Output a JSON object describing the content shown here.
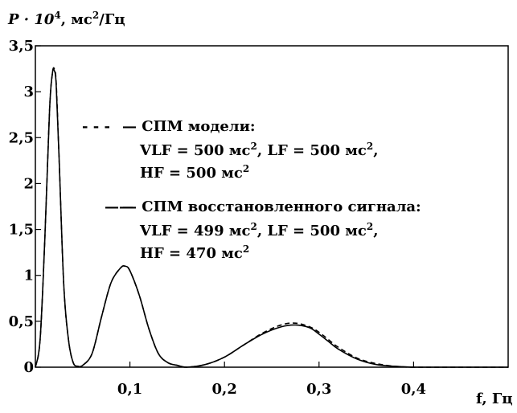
{
  "chart_data": {
    "type": "line",
    "title": "",
    "ylabel": "P · 10⁴, мс²/Гц",
    "ylabel_parts": {
      "base": "P · 10",
      "exp1": "4",
      "mid": ", мс",
      "exp2": "2",
      "tail": "/Гц"
    },
    "xlabel": "f, Гц",
    "xlim": [
      0,
      0.5
    ],
    "ylim": [
      0,
      3.5
    ],
    "grid": false,
    "x_ticks": [
      {
        "value": 0.1,
        "label": "0,1"
      },
      {
        "value": 0.2,
        "label": "0,2"
      },
      {
        "value": 0.3,
        "label": "0,3"
      },
      {
        "value": 0.4,
        "label": "0,4"
      }
    ],
    "y_ticks": [
      {
        "value": 0,
        "label": "0"
      },
      {
        "value": 0.5,
        "label": "0,5"
      },
      {
        "value": 1,
        "label": "1"
      },
      {
        "value": 1.5,
        "label": "1,5"
      },
      {
        "value": 2,
        "label": "2"
      },
      {
        "value": 2.5,
        "label": "2,5"
      },
      {
        "value": 3,
        "label": "3"
      },
      {
        "value": 3.5,
        "label": "3,5"
      }
    ],
    "series": [
      {
        "name": "СПМ модели",
        "style": "dashed",
        "color": "#000000",
        "x": [
          0,
          0.005,
          0.01,
          0.015,
          0.018,
          0.02,
          0.022,
          0.025,
          0.03,
          0.035,
          0.04,
          0.045,
          0.05,
          0.06,
          0.07,
          0.08,
          0.09,
          0.095,
          0.1,
          0.11,
          0.12,
          0.13,
          0.14,
          0.15,
          0.16,
          0.18,
          0.2,
          0.22,
          0.24,
          0.26,
          0.275,
          0.29,
          0.3,
          0.31,
          0.32,
          0.34,
          0.36,
          0.38,
          0.4,
          0.42,
          0.45,
          0.5
        ],
        "y": [
          0,
          0.3,
          1.4,
          2.8,
          3.2,
          3.25,
          3.1,
          2.3,
          0.9,
          0.3,
          0.05,
          0.01,
          0.02,
          0.15,
          0.55,
          0.92,
          1.08,
          1.1,
          1.05,
          0.78,
          0.42,
          0.15,
          0.05,
          0.02,
          0.0,
          0.03,
          0.11,
          0.24,
          0.37,
          0.46,
          0.48,
          0.44,
          0.38,
          0.3,
          0.22,
          0.1,
          0.04,
          0.01,
          0.0,
          0.0,
          0.0,
          0.0
        ]
      },
      {
        "name": "СПМ восстановленного сигнала",
        "style": "solid",
        "color": "#000000",
        "x": [
          0,
          0.005,
          0.01,
          0.015,
          0.018,
          0.02,
          0.022,
          0.025,
          0.03,
          0.035,
          0.04,
          0.045,
          0.05,
          0.06,
          0.07,
          0.08,
          0.09,
          0.095,
          0.1,
          0.11,
          0.12,
          0.13,
          0.14,
          0.15,
          0.16,
          0.18,
          0.2,
          0.22,
          0.24,
          0.26,
          0.275,
          0.29,
          0.3,
          0.31,
          0.32,
          0.34,
          0.36,
          0.38,
          0.4,
          0.42,
          0.45,
          0.5
        ],
        "y": [
          0,
          0.3,
          1.4,
          2.8,
          3.2,
          3.23,
          3.08,
          2.3,
          0.9,
          0.3,
          0.05,
          0.01,
          0.02,
          0.15,
          0.55,
          0.92,
          1.08,
          1.1,
          1.05,
          0.78,
          0.42,
          0.15,
          0.05,
          0.02,
          0.0,
          0.03,
          0.11,
          0.24,
          0.36,
          0.44,
          0.46,
          0.43,
          0.36,
          0.28,
          0.2,
          0.09,
          0.03,
          0.01,
          0.0,
          0.0,
          0.0,
          0.0
        ]
      }
    ],
    "legend": {
      "placement": "top-right",
      "entries": [
        {
          "dash": "- - -",
          "label": "— СПМ модели:",
          "lines": [
            {
              "parts": [
                "VLF = 500 мс",
                "2",
                ", LF = 500 мс",
                "2",
                ","
              ]
            },
            {
              "parts": [
                "HF = 500 мс",
                "2",
                "",
                "",
                ""
              ]
            }
          ]
        },
        {
          "dash": "——",
          "label": "— СПМ восстановленного сигнала:",
          "lines": [
            {
              "parts": [
                "VLF = 499 мс",
                "2",
                ", LF = 500 мс",
                "2",
                ","
              ]
            },
            {
              "parts": [
                "HF = 470 мс",
                "2",
                "",
                "",
                ""
              ]
            }
          ]
        }
      ]
    }
  }
}
